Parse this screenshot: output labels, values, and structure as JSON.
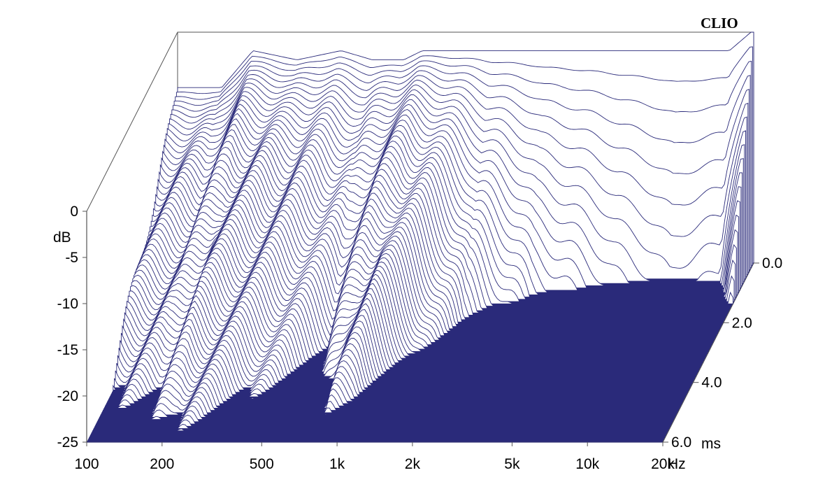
{
  "chart_data": {
    "type": "waterfall-3d",
    "brand": "CLIO",
    "colors": {
      "line": "#2a2a7a",
      "fill": "#ffffff",
      "floor": "#2a2a7a",
      "frame": "#555555",
      "text": "#000000"
    },
    "x_axis": {
      "scale": "log",
      "range": [
        100,
        20000
      ],
      "unit_label": "Hz",
      "ticks": [
        {
          "value": 100,
          "label": "100"
        },
        {
          "value": 200,
          "label": "200"
        },
        {
          "value": 500,
          "label": "500"
        },
        {
          "value": 1000,
          "label": "1k"
        },
        {
          "value": 2000,
          "label": "2k"
        },
        {
          "value": 5000,
          "label": "5k"
        },
        {
          "value": 10000,
          "label": "10k"
        },
        {
          "value": 20000,
          "label": "20k"
        }
      ]
    },
    "y_axis": {
      "label": "dB",
      "range": [
        -25,
        0
      ],
      "ticks": [
        {
          "value": 0,
          "label": "0"
        },
        {
          "value": -5,
          "label": "-5"
        },
        {
          "value": -10,
          "label": "-10"
        },
        {
          "value": -15,
          "label": "-15"
        },
        {
          "value": -20,
          "label": "-20"
        },
        {
          "value": -25,
          "label": "-25"
        }
      ]
    },
    "z_axis": {
      "unit_label": "ms",
      "range": [
        0,
        6
      ],
      "ticks": [
        {
          "value": 0,
          "label": "0.0"
        },
        {
          "value": 2,
          "label": "2.0"
        },
        {
          "value": 4,
          "label": "4.0"
        },
        {
          "value": 6,
          "label": "6.0"
        }
      ]
    },
    "slices": 80,
    "approx_decay": {
      "note_points_freq_hz": [
        150,
        200,
        300,
        450,
        600,
        800,
        950,
        1300,
        1800,
        3000,
        6000,
        10000,
        16000,
        19500
      ],
      "initial_level_db": [
        -6,
        -2,
        -3,
        -2,
        -3,
        -3,
        -2,
        -2,
        -2,
        -2,
        -2,
        -2,
        -2,
        0
      ],
      "decay_time_ms": [
        6.0,
        6.0,
        5.5,
        4.2,
        3.5,
        5.5,
        5.3,
        3.5,
        2.0,
        1.2,
        0.8,
        0.6,
        0.7,
        1.4
      ]
    }
  }
}
